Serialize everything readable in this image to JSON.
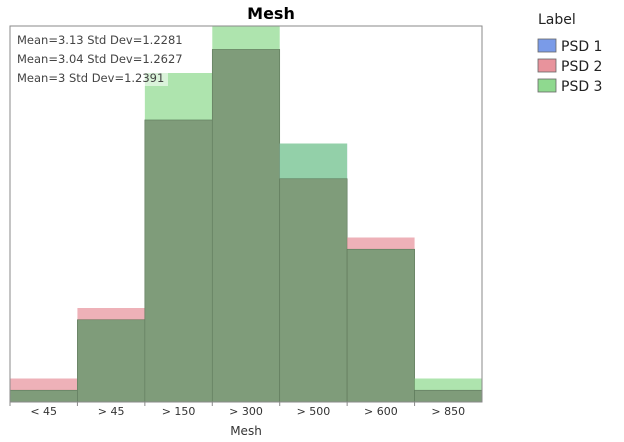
{
  "chart_data": {
    "type": "bar",
    "title": "Mesh",
    "xlabel": "Mesh",
    "ylabel": "",
    "categories": [
      "< 45",
      "> 45",
      "> 150",
      "> 300",
      "> 500",
      "> 600",
      "> 850"
    ],
    "ylim": [
      0,
      32
    ],
    "grid": false,
    "legend_position": "right",
    "legend_title": "Label",
    "series": [
      {
        "name": "PSD 1",
        "color": "#7a9be8",
        "values": [
          1,
          7,
          24,
          30,
          22,
          13,
          1
        ]
      },
      {
        "name": "PSD 2",
        "color": "#e8939c",
        "values": [
          2,
          8,
          24,
          30,
          19,
          14,
          1
        ]
      },
      {
        "name": "PSD 3",
        "color": "#8fd98f",
        "values": [
          1,
          7,
          28,
          32,
          22,
          13,
          2
        ]
      }
    ],
    "overlap_fill": "#7f9c7a",
    "annotations": [
      "Mean=3.13  Std Dev=1.2281",
      "Mean=3.04  Std Dev=1.2627",
      "Mean=3  Std Dev=1.2391"
    ]
  }
}
